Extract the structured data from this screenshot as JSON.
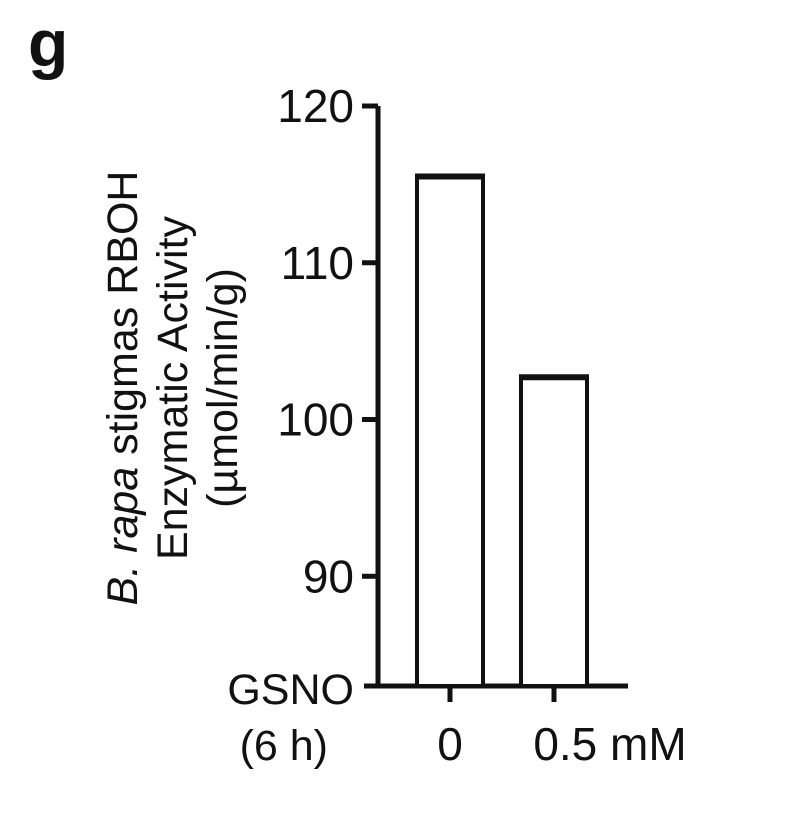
{
  "panel_label": "g",
  "chart_data": {
    "type": "bar",
    "categories": [
      "0",
      "0.5 mM"
    ],
    "values": [
      115.5,
      102.7
    ],
    "ylim": [
      83,
      120
    ],
    "yticks": [
      90,
      100,
      110,
      120
    ],
    "ytick_labels": [
      "90",
      "100",
      "110",
      "120"
    ],
    "ylabel": {
      "line1_italic": "B. rapa",
      "line1_rest": " stigmas RBOH",
      "line2": "Enzymatic Activity",
      "line3": "(µmol/min/g)"
    },
    "x_row_label": {
      "line1": "GSNO",
      "line2": "(6 h)"
    },
    "grid": false,
    "bar_fill": "#ffffff",
    "bar_stroke": "#111111"
  }
}
